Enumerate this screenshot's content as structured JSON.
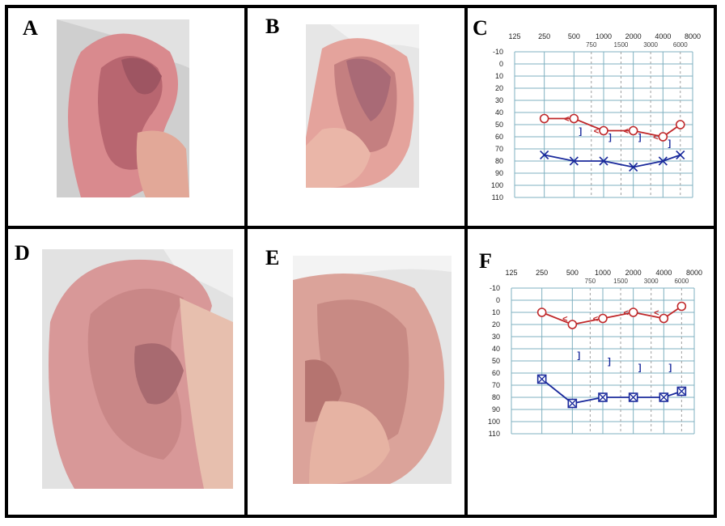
{
  "panels": {
    "A": {
      "label": "A"
    },
    "B": {
      "label": "B"
    },
    "C": {
      "label": "C"
    },
    "D": {
      "label": "D"
    },
    "E": {
      "label": "E"
    },
    "F": {
      "label": "F"
    }
  },
  "photos": {
    "A": {
      "subject": "ear-icon",
      "skin": "#d8868a",
      "background": "#cfcfcf"
    },
    "B": {
      "subject": "ear-icon",
      "skin": "#e3a19a",
      "background": "#e6e6e6"
    },
    "D": {
      "subject": "ear-icon",
      "skin": "#d99a98",
      "background": "#e2e2e2"
    },
    "E": {
      "subject": "ear-icon",
      "skin": "#d9a097",
      "background": "#e5e5e5"
    }
  },
  "colors": {
    "grid": "#7fb0c0",
    "grid_dashed": "#a0a0a0",
    "right_ear": "#c0282a",
    "left_ear": "#1a2a9c"
  },
  "chart_data": [
    {
      "panel": "C",
      "type": "line",
      "freq_labels_top": [
        "125",
        "250",
        "500",
        "1000",
        "2000",
        "4000",
        "8000"
      ],
      "freq_labels_half": [
        "750",
        "1500",
        "3000",
        "6000"
      ],
      "y_ticks": [
        "-10",
        "0",
        "10",
        "20",
        "30",
        "40",
        "50",
        "60",
        "70",
        "80",
        "90",
        "100",
        "110"
      ],
      "ylim": [
        -10,
        110
      ],
      "series": [
        {
          "marker": "O",
          "color": "#c0282a",
          "x": [
            250,
            500,
            1000,
            2000,
            4000,
            6000
          ],
          "y": [
            45,
            45,
            55,
            55,
            60,
            50
          ]
        },
        {
          "marker": "X",
          "color": "#1a2a9c",
          "x": [
            250,
            500,
            1000,
            2000,
            4000,
            6000
          ],
          "y": [
            75,
            80,
            80,
            85,
            80,
            75
          ]
        }
      ],
      "bone_markers": [
        {
          "symbol": "<",
          "x": 500,
          "y": 45,
          "color": "#c0282a"
        },
        {
          "symbol": "<",
          "x": 1000,
          "y": 55,
          "color": "#c0282a"
        },
        {
          "symbol": "<",
          "x": 2000,
          "y": 55,
          "color": "#c0282a"
        },
        {
          "symbol": "<",
          "x": 4000,
          "y": 60,
          "color": "#c0282a"
        },
        {
          "symbol": "]",
          "x": 500,
          "y": 55,
          "color": "#1a2a9c"
        },
        {
          "symbol": "]",
          "x": 1000,
          "y": 60,
          "color": "#1a2a9c"
        },
        {
          "symbol": "]",
          "x": 2000,
          "y": 60,
          "color": "#1a2a9c"
        },
        {
          "symbol": "]",
          "x": 4000,
          "y": 65,
          "color": "#1a2a9c"
        }
      ]
    },
    {
      "panel": "F",
      "type": "line",
      "freq_labels_top": [
        "125",
        "250",
        "500",
        "1000",
        "2000",
        "4000",
        "8000"
      ],
      "freq_labels_half": [
        "750",
        "1500",
        "3000",
        "6000"
      ],
      "y_ticks": [
        "-10",
        "0",
        "10",
        "20",
        "30",
        "40",
        "50",
        "60",
        "70",
        "80",
        "90",
        "100",
        "110"
      ],
      "ylim": [
        -10,
        110
      ],
      "series": [
        {
          "marker": "O",
          "color": "#c0282a",
          "x": [
            250,
            500,
            1000,
            2000,
            4000,
            6000
          ],
          "y": [
            10,
            20,
            15,
            10,
            15,
            5
          ]
        },
        {
          "marker": "boxX",
          "color": "#1a2a9c",
          "x": [
            250,
            500,
            1000,
            2000,
            4000,
            6000
          ],
          "y": [
            65,
            85,
            80,
            80,
            80,
            75
          ]
        }
      ],
      "bone_markers": [
        {
          "symbol": "<",
          "x": 500,
          "y": 15,
          "color": "#c0282a"
        },
        {
          "symbol": "<",
          "x": 1000,
          "y": 15,
          "color": "#c0282a"
        },
        {
          "symbol": "<",
          "x": 2000,
          "y": 10,
          "color": "#c0282a"
        },
        {
          "symbol": "<",
          "x": 4000,
          "y": 10,
          "color": "#c0282a"
        },
        {
          "symbol": "]",
          "x": 500,
          "y": 45,
          "color": "#1a2a9c"
        },
        {
          "symbol": "]",
          "x": 1000,
          "y": 50,
          "color": "#1a2a9c"
        },
        {
          "symbol": "]",
          "x": 2000,
          "y": 55,
          "color": "#1a2a9c"
        },
        {
          "symbol": "]",
          "x": 4000,
          "y": 55,
          "color": "#1a2a9c"
        }
      ]
    }
  ]
}
